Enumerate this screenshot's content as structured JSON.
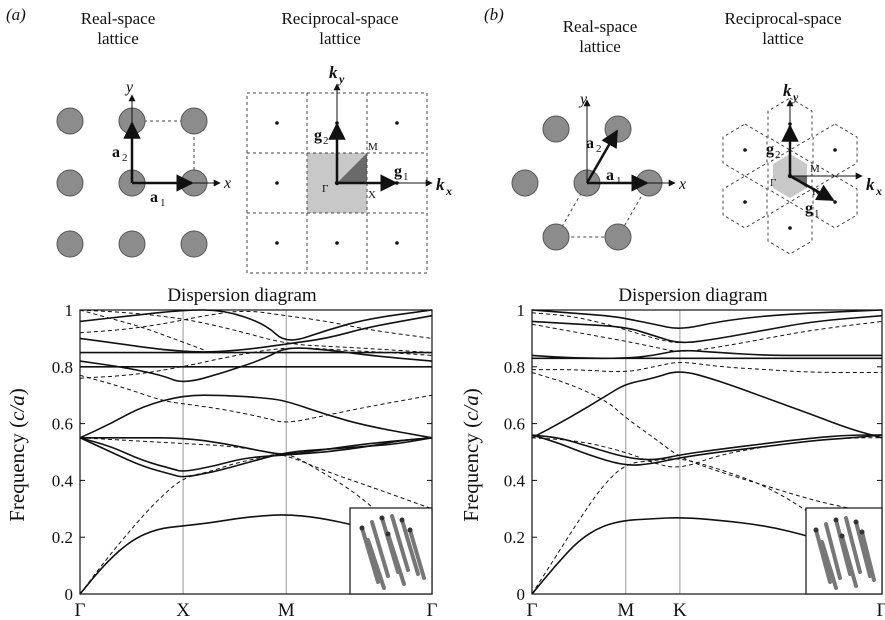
{
  "figure": {
    "panels": [
      {
        "tag": "(a)",
        "real_title": [
          "Real-space",
          "lattice"
        ],
        "reciprocal_title": [
          "Reciprocal-space",
          "lattice"
        ],
        "labels": {
          "a1": "a",
          "a1_sub": "1",
          "a2": "a",
          "a2_sub": "2",
          "x": "x",
          "y": "y",
          "g1": "g",
          "g1_sub": "1",
          "g2": "g",
          "g2_sub": "2",
          "kx": "k",
          "kx_sub": "x",
          "ky": "k",
          "ky_sub": "y",
          "gamma": "Γ",
          "p1": "X",
          "p2": "M"
        }
      },
      {
        "tag": "(b)",
        "real_title": [
          "Real-space",
          "lattice"
        ],
        "reciprocal_title": [
          "Reciprocal-space",
          "lattice"
        ],
        "labels": {
          "a1": "a",
          "a1_sub": "1",
          "a2": "a",
          "a2_sub": "2",
          "x": "x",
          "y": "y",
          "g1": "g",
          "g1_sub": "1",
          "g2": "g",
          "g2_sub": "2",
          "kx": "k",
          "kx_sub": "x",
          "ky": "k",
          "ky_sub": "y",
          "gamma": "Γ",
          "p1": "K",
          "p2": "M"
        }
      }
    ]
  },
  "colors": {
    "ink": "#111111",
    "atom": "#8c8c8c",
    "bz": "#c8c8c8",
    "ibz": "#6a6a6a",
    "grid": "#9a9a9a"
  },
  "chart_data": [
    {
      "type": "line",
      "title": "Dispersion diagram",
      "ylabel_main": "Frequency (",
      "ylabel_italic": "c/a",
      "ylabel_end": ")",
      "ylim": [
        0,
        1
      ],
      "yticks": [
        0,
        0.2,
        0.4,
        0.6,
        0.8,
        1
      ],
      "ytick_labels": [
        "0",
        "0.2",
        "0.4",
        "0.6",
        "0.8",
        "1"
      ],
      "xticks": [
        0,
        1,
        2,
        3.414
      ],
      "xtick_labels": [
        "Γ",
        "X",
        "M",
        "Γ"
      ],
      "xlim": [
        0,
        3.414
      ],
      "grid": "vertical lines at symmetry points",
      "inset": "3D rod lattice",
      "series": [
        {
          "style": "solid",
          "x": [
            0,
            0.25,
            0.5,
            0.75,
            1,
            1.25,
            1.5,
            1.75,
            2,
            2.3,
            2.7,
            3.1,
            3.414
          ],
          "y": [
            0,
            0.11,
            0.19,
            0.23,
            0.24,
            0.25,
            0.265,
            0.275,
            0.28,
            0.27,
            0.24,
            0.2,
            0.12
          ]
        },
        {
          "style": "dashed",
          "x": [
            0,
            0.25,
            0.5,
            0.75,
            1,
            1.25,
            1.5,
            1.75,
            2,
            2.3,
            2.7,
            3.1,
            3.414
          ],
          "y": [
            0,
            0.12,
            0.23,
            0.33,
            0.41,
            0.43,
            0.46,
            0.48,
            0.5,
            0.44,
            0.35,
            0.22,
            0.1
          ]
        },
        {
          "style": "solid",
          "x": [
            0,
            0.3,
            0.6,
            0.9,
            1,
            1.3,
            1.6,
            2,
            2.4,
            2.8,
            3.1,
            3.414
          ],
          "y": [
            0.55,
            0.5,
            0.45,
            0.42,
            0.41,
            0.43,
            0.46,
            0.5,
            0.51,
            0.52,
            0.53,
            0.55
          ]
        },
        {
          "style": "solid",
          "x": [
            0,
            0.3,
            0.6,
            0.9,
            1,
            1.3,
            1.6,
            2,
            2.4,
            2.8,
            3.1,
            3.414
          ],
          "y": [
            0.55,
            0.52,
            0.47,
            0.44,
            0.43,
            0.45,
            0.48,
            0.49,
            0.5,
            0.52,
            0.54,
            0.55
          ]
        },
        {
          "style": "solid",
          "x": [
            0,
            0.5,
            1,
            1.4,
            1.8,
            2,
            2.4,
            2.8,
            3.414
          ],
          "y": [
            0.55,
            0.55,
            0.55,
            0.53,
            0.5,
            0.49,
            0.51,
            0.53,
            0.55
          ]
        },
        {
          "style": "dashed",
          "x": [
            0,
            0.5,
            1,
            1.5,
            2,
            2.4,
            2.8,
            3.414
          ],
          "y": [
            0.55,
            0.54,
            0.53,
            0.52,
            0.49,
            0.43,
            0.38,
            0.3
          ]
        },
        {
          "style": "solid",
          "x": [
            0,
            0.3,
            0.6,
            1,
            1.4,
            1.8,
            2,
            2.4,
            2.8,
            3.414
          ],
          "y": [
            0.55,
            0.6,
            0.66,
            0.7,
            0.7,
            0.69,
            0.68,
            0.63,
            0.59,
            0.55
          ]
        },
        {
          "style": "dashed",
          "x": [
            0,
            0.4,
            0.8,
            1,
            1.4,
            1.8,
            2,
            2.4,
            2.8,
            3.414
          ],
          "y": [
            0.77,
            0.73,
            0.68,
            0.67,
            0.65,
            0.62,
            0.6,
            0.63,
            0.66,
            0.7
          ]
        },
        {
          "style": "solid",
          "x": [
            0,
            0.5,
            1,
            1.5,
            2,
            2.5,
            3,
            3.414
          ],
          "y": [
            0.8,
            0.8,
            0.8,
            0.8,
            0.8,
            0.8,
            0.8,
            0.8
          ]
        },
        {
          "style": "solid",
          "x": [
            0,
            0.5,
            1,
            1.5,
            2,
            2.5,
            3,
            3.414
          ],
          "y": [
            0.85,
            0.85,
            0.85,
            0.85,
            0.85,
            0.85,
            0.85,
            0.85
          ]
        },
        {
          "style": "solid",
          "x": [
            0,
            0.4,
            0.8,
            1,
            1.4,
            1.8,
            2,
            2.4,
            2.8,
            3.414
          ],
          "y": [
            0.82,
            0.8,
            0.77,
            0.74,
            0.78,
            0.83,
            0.87,
            0.86,
            0.84,
            0.82
          ]
        },
        {
          "style": "dashed",
          "x": [
            0,
            0.5,
            1,
            1.5,
            2,
            2.5,
            3,
            3.414
          ],
          "y": [
            0.76,
            0.77,
            0.8,
            0.84,
            0.87,
            0.86,
            0.85,
            0.84
          ]
        },
        {
          "style": "solid",
          "x": [
            0,
            0.4,
            0.8,
            1.2,
            1.6,
            2,
            2.4,
            2.8,
            3.414
          ],
          "y": [
            0.9,
            0.88,
            0.86,
            0.85,
            0.86,
            0.88,
            0.9,
            0.94,
            0.98
          ]
        },
        {
          "style": "dashed",
          "x": [
            0,
            0.4,
            0.8,
            1.2,
            1.6,
            2,
            2.4,
            2.8,
            3.414
          ],
          "y": [
            0.92,
            0.93,
            0.95,
            0.98,
            1.0,
            0.98,
            0.96,
            0.93,
            0.9
          ]
        },
        {
          "style": "solid",
          "x": [
            0,
            0.5,
            1,
            1.4,
            1.8,
            2,
            2.4,
            2.8,
            3.414
          ],
          "y": [
            0.96,
            0.98,
            1.0,
            1.0,
            0.95,
            0.88,
            0.93,
            0.97,
            1.0
          ]
        },
        {
          "style": "dashed",
          "x": [
            0,
            0.5,
            1,
            1.5,
            2,
            2.5,
            3,
            3.414
          ],
          "y": [
            1.0,
            0.99,
            0.97,
            0.93,
            0.88,
            0.87,
            0.86,
            0.85
          ]
        },
        {
          "style": "dashed",
          "x": [
            0,
            0.3,
            0.6,
            0.9,
            1.2
          ],
          "y": [
            1.0,
            0.97,
            0.94,
            0.9,
            0.86
          ]
        }
      ]
    },
    {
      "type": "line",
      "title": "Dispersion diagram",
      "ylabel_main": "Frequency (",
      "ylabel_italic": "c/a",
      "ylabel_end": ")",
      "ylim": [
        0,
        1
      ],
      "yticks": [
        0,
        0.2,
        0.4,
        0.6,
        0.8,
        1
      ],
      "ytick_labels": [
        "0",
        "0.2",
        "0.4",
        "0.6",
        "0.8",
        "1"
      ],
      "xticks": [
        0,
        1,
        1.577,
        3.732
      ],
      "xtick_labels": [
        "Γ",
        "M",
        "K",
        "Γ"
      ],
      "xlim": [
        0,
        3.732
      ],
      "grid": "vertical lines at symmetry points",
      "inset": "3D rod lattice",
      "series": [
        {
          "style": "solid",
          "x": [
            0,
            0.25,
            0.5,
            0.75,
            1,
            1.3,
            1.577,
            2,
            2.5,
            3,
            3.4,
            3.732
          ],
          "y": [
            0,
            0.1,
            0.19,
            0.24,
            0.26,
            0.265,
            0.27,
            0.26,
            0.24,
            0.2,
            0.15,
            0.1
          ]
        },
        {
          "style": "dashed",
          "x": [
            0,
            0.25,
            0.5,
            0.75,
            1,
            1.3,
            1.577,
            2,
            2.5,
            3,
            3.4,
            3.732
          ],
          "y": [
            0,
            0.13,
            0.26,
            0.38,
            0.46,
            0.47,
            0.48,
            0.44,
            0.38,
            0.28,
            0.18,
            0.1
          ]
        },
        {
          "style": "solid",
          "x": [
            0,
            0.3,
            0.6,
            1,
            1.3,
            1.577,
            2,
            2.5,
            3,
            3.4,
            3.732
          ],
          "y": [
            0.56,
            0.53,
            0.49,
            0.45,
            0.46,
            0.48,
            0.5,
            0.52,
            0.54,
            0.55,
            0.56
          ]
        },
        {
          "style": "solid",
          "x": [
            0,
            0.3,
            0.6,
            1,
            1.3,
            1.577,
            2,
            2.5,
            3,
            3.4,
            3.732
          ],
          "y": [
            0.56,
            0.55,
            0.52,
            0.48,
            0.47,
            0.49,
            0.51,
            0.53,
            0.55,
            0.56,
            0.56
          ]
        },
        {
          "style": "dashed",
          "x": [
            0,
            0.5,
            1,
            1.3,
            1.577,
            2,
            2.5,
            3,
            3.4,
            3.732
          ],
          "y": [
            0.55,
            0.54,
            0.5,
            0.46,
            0.44,
            0.49,
            0.52,
            0.54,
            0.55,
            0.55
          ]
        },
        {
          "style": "solid",
          "x": [
            0,
            0.4,
            0.8,
            1,
            1.3,
            1.577,
            2,
            2.5,
            3,
            3.4,
            3.732
          ],
          "y": [
            0.55,
            0.62,
            0.7,
            0.74,
            0.76,
            0.79,
            0.75,
            0.69,
            0.63,
            0.58,
            0.55
          ]
        },
        {
          "style": "dashed",
          "x": [
            0,
            0.4,
            0.8,
            1,
            1.3,
            1.577,
            2,
            2.5,
            3,
            3.4,
            3.732
          ],
          "y": [
            0.78,
            0.74,
            0.68,
            0.62,
            0.55,
            0.48,
            0.43,
            0.38,
            0.33,
            0.3,
            0.28
          ]
        },
        {
          "style": "dashed",
          "x": [
            0,
            0.5,
            1,
            1.3,
            1.577,
            2,
            2.5,
            3,
            3.732
          ],
          "y": [
            0.79,
            0.79,
            0.78,
            0.8,
            0.82,
            0.8,
            0.79,
            0.78,
            0.78
          ]
        },
        {
          "style": "solid",
          "x": [
            0,
            0.5,
            1,
            1.3,
            1.577,
            2,
            2.5,
            3,
            3.732
          ],
          "y": [
            0.83,
            0.83,
            0.83,
            0.83,
            0.83,
            0.83,
            0.83,
            0.83,
            0.83
          ]
        },
        {
          "style": "solid",
          "x": [
            0,
            0.5,
            1,
            1.3,
            1.577,
            2,
            2.5,
            3,
            3.732
          ],
          "y": [
            0.84,
            0.83,
            0.83,
            0.84,
            0.86,
            0.85,
            0.84,
            0.84,
            0.84
          ]
        },
        {
          "style": "solid",
          "x": [
            0,
            0.5,
            1,
            1.3,
            1.577,
            2,
            2.5,
            3,
            3.732
          ],
          "y": [
            0.96,
            0.95,
            0.94,
            0.91,
            0.88,
            0.9,
            0.93,
            0.96,
            0.98
          ]
        },
        {
          "style": "dashed",
          "x": [
            0,
            0.5,
            1,
            1.3,
            1.577,
            2,
            2.5,
            3,
            3.732
          ],
          "y": [
            0.95,
            0.92,
            0.89,
            0.87,
            0.85,
            0.87,
            0.9,
            0.93,
            0.96
          ]
        },
        {
          "style": "solid",
          "x": [
            0,
            0.4,
            0.8,
            1,
            1.3,
            1.577,
            2,
            2.5,
            3,
            3.732
          ],
          "y": [
            1.0,
            0.99,
            0.98,
            0.97,
            0.95,
            0.93,
            0.96,
            0.98,
            0.99,
            1.0
          ]
        },
        {
          "style": "dashed",
          "x": [
            0,
            0.4,
            0.8,
            1,
            1.3,
            1.577,
            2
          ],
          "y": [
            0.99,
            0.98,
            0.95,
            0.93,
            0.9,
            0.88,
            0.9
          ]
        }
      ]
    }
  ]
}
